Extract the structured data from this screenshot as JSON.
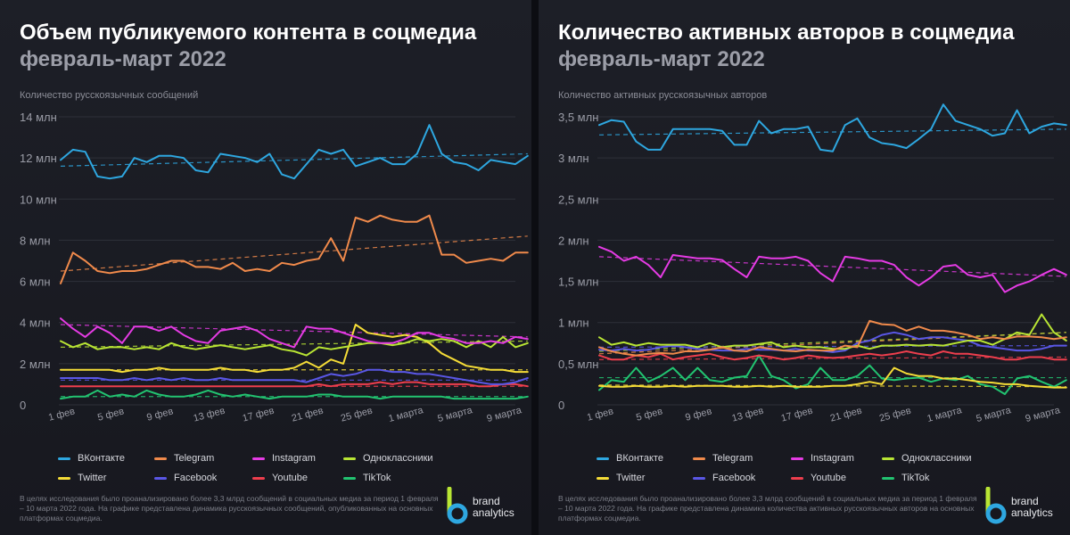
{
  "panels": [
    {
      "title": "Объем публикуемого контента в соцмедиа",
      "subtitle": "февраль-март 2022",
      "ylabel": "Количество русскоязычных сообщений",
      "footnote": "В целях исследования было проанализировано более 3,3 млрд сообщений в социальных медиа за период 1 февраля – 10 марта 2022 года. На графике представлена динамика русскоязычных сообщений, опубликованных на основных платформах соцмедиа."
    },
    {
      "title": "Количество активных авторов в соцмедиа",
      "subtitle": "февраль-март 2022",
      "ylabel": "Количество активных русскоязычных авторов",
      "footnote": "В целях исследования было проанализировано более 3,3 млрд сообщений в социальных медиа за период 1 февраля – 10 марта 2022 года. На графике представлена динамика количества активных русскоязычных авторов на основных платформах соцмедиа."
    }
  ],
  "brand": {
    "line1": "brand",
    "line2": "analytics"
  },
  "chart_data": [
    {
      "type": "line",
      "title": "Объем публикуемого контента в соцмедиа",
      "subtitle": "февраль-март 2022",
      "ylabel": "Количество русскоязычных сообщений",
      "ylim": [
        0,
        14
      ],
      "yticks": [
        0,
        2,
        4,
        6,
        8,
        10,
        12,
        14
      ],
      "yticklabels": [
        "0",
        "2 млн",
        "4 млн",
        "6 млн",
        "8 млн",
        "10 млн",
        "12 млн",
        "14 млн"
      ],
      "xlim": [
        0,
        37
      ],
      "xticks": [
        0,
        4,
        8,
        12,
        16,
        20,
        24,
        28,
        32,
        36
      ],
      "xticklabels": [
        "1 фев",
        "5 фев",
        "9 фев",
        "13 фев",
        "17 фев",
        "21 фев",
        "25 фев",
        "1 марта",
        "5 марта",
        "9 марта"
      ],
      "grid": true,
      "legend_position": "bottom",
      "series": [
        {
          "name": "ВКонтакте",
          "color": "#2ea7e0",
          "trend": [
            11.6,
            12.2
          ],
          "values": [
            11.9,
            12.4,
            12.3,
            11.1,
            11.0,
            11.1,
            12.0,
            11.8,
            12.1,
            12.1,
            12.0,
            11.4,
            11.3,
            12.2,
            12.1,
            12.0,
            11.8,
            12.2,
            11.2,
            11.0,
            11.7,
            12.4,
            12.2,
            12.4,
            11.6,
            11.8,
            12.0,
            11.7,
            11.7,
            12.2,
            13.6,
            12.2,
            11.8,
            11.7,
            11.4,
            11.9,
            11.8,
            11.7,
            12.1
          ]
        },
        {
          "name": "Telegram",
          "color": "#f08a4b",
          "trend": [
            6.5,
            8.2
          ],
          "values": [
            5.9,
            7.4,
            7.0,
            6.5,
            6.4,
            6.5,
            6.5,
            6.6,
            6.8,
            7.0,
            7.0,
            6.7,
            6.7,
            6.6,
            6.9,
            6.5,
            6.6,
            6.5,
            6.9,
            6.8,
            7.0,
            7.1,
            8.1,
            7.0,
            9.1,
            8.9,
            9.2,
            9.0,
            8.9,
            8.9,
            9.2,
            7.3,
            7.3,
            6.9,
            7.0,
            7.1,
            7.0,
            7.4,
            7.4
          ]
        },
        {
          "name": "Instagram",
          "color": "#e53be4",
          "trend": [
            3.9,
            3.3
          ],
          "values": [
            4.2,
            3.7,
            3.3,
            3.8,
            3.5,
            3.0,
            3.8,
            3.8,
            3.6,
            3.8,
            3.4,
            3.1,
            3.0,
            3.6,
            3.7,
            3.8,
            3.6,
            3.2,
            3.0,
            2.8,
            3.8,
            3.7,
            3.7,
            3.5,
            3.3,
            3.1,
            3.0,
            3.0,
            3.2,
            3.5,
            3.5,
            3.3,
            3.2,
            3.0,
            3.0,
            3.1,
            3.0,
            3.3,
            3.2
          ]
        },
        {
          "name": "Одноклассники",
          "color": "#b9e534",
          "trend": [
            2.8,
            3.1
          ],
          "values": [
            3.1,
            2.8,
            3.0,
            2.7,
            2.8,
            2.8,
            2.7,
            2.8,
            2.7,
            3.0,
            2.8,
            2.7,
            2.8,
            2.9,
            2.8,
            2.7,
            2.8,
            2.9,
            2.7,
            2.6,
            2.4,
            2.8,
            2.7,
            2.8,
            2.9,
            3.0,
            3.0,
            2.9,
            3.0,
            3.2,
            3.1,
            3.2,
            3.1,
            2.8,
            3.1,
            2.8,
            3.3,
            2.8,
            3.0
          ]
        },
        {
          "name": "Twitter",
          "color": "#f5dc37",
          "trend": [
            1.7,
            1.7
          ],
          "values": [
            1.7,
            1.7,
            1.7,
            1.7,
            1.7,
            1.6,
            1.7,
            1.7,
            1.8,
            1.7,
            1.7,
            1.7,
            1.7,
            1.8,
            1.7,
            1.7,
            1.6,
            1.7,
            1.7,
            1.8,
            2.1,
            1.8,
            2.2,
            2.0,
            3.9,
            3.5,
            3.4,
            3.3,
            3.4,
            3.3,
            3.0,
            2.5,
            2.2,
            1.9,
            1.8,
            1.7,
            1.7,
            1.6,
            1.6
          ]
        },
        {
          "name": "Facebook",
          "color": "#5a57e6",
          "trend": [
            1.2,
            1.2
          ],
          "values": [
            1.3,
            1.3,
            1.3,
            1.3,
            1.2,
            1.2,
            1.3,
            1.2,
            1.3,
            1.2,
            1.3,
            1.2,
            1.2,
            1.3,
            1.2,
            1.2,
            1.2,
            1.2,
            1.2,
            1.2,
            1.1,
            1.3,
            1.5,
            1.4,
            1.5,
            1.7,
            1.7,
            1.6,
            1.6,
            1.5,
            1.5,
            1.4,
            1.3,
            1.2,
            1.1,
            1.0,
            1.0,
            1.1,
            1.3
          ]
        },
        {
          "name": "Youtube",
          "color": "#ee3e4d",
          "trend": [
            0.9,
            0.9
          ],
          "values": [
            0.9,
            0.9,
            0.9,
            0.9,
            0.9,
            0.9,
            0.9,
            0.9,
            0.9,
            0.9,
            0.9,
            0.9,
            0.9,
            0.9,
            0.9,
            0.9,
            0.9,
            0.9,
            0.9,
            0.9,
            0.9,
            1.0,
            0.9,
            1.0,
            1.0,
            1.0,
            1.1,
            1.0,
            1.1,
            1.1,
            1.0,
            1.0,
            1.0,
            1.0,
            0.9,
            0.9,
            1.0,
            1.0,
            0.9
          ]
        },
        {
          "name": "TikTok",
          "color": "#22c471",
          "trend": [
            0.4,
            0.4
          ],
          "values": [
            0.3,
            0.4,
            0.4,
            0.7,
            0.4,
            0.5,
            0.4,
            0.7,
            0.5,
            0.4,
            0.4,
            0.5,
            0.7,
            0.5,
            0.4,
            0.5,
            0.4,
            0.3,
            0.4,
            0.4,
            0.4,
            0.5,
            0.5,
            0.4,
            0.4,
            0.4,
            0.3,
            0.4,
            0.4,
            0.4,
            0.4,
            0.4,
            0.3,
            0.3,
            0.3,
            0.3,
            0.3,
            0.3,
            0.4
          ]
        }
      ]
    },
    {
      "type": "line",
      "title": "Количество активных авторов в соцмедиа",
      "subtitle": "февраль-март 2022",
      "ylabel": "Количество активных русскоязычных авторов",
      "ylim": [
        0,
        3.5
      ],
      "yticks": [
        0,
        0.5,
        1,
        1.5,
        2,
        2.5,
        3,
        3.5
      ],
      "yticklabels": [
        "0",
        "0,5 млн",
        "1 млн",
        "1,5 млн",
        "2 млн",
        "2,5 млн",
        "3 млн",
        "3,5 млн"
      ],
      "xlim": [
        0,
        37
      ],
      "xticks": [
        0,
        4,
        8,
        12,
        16,
        20,
        24,
        28,
        32,
        36
      ],
      "xticklabels": [
        "1 фев",
        "5 фев",
        "9 фев",
        "13 фев",
        "17 фев",
        "21 фев",
        "25 фев",
        "1 марта",
        "5 марта",
        "9 марта"
      ],
      "grid": true,
      "legend_position": "bottom",
      "series": [
        {
          "name": "ВКонтакте",
          "color": "#2ea7e0",
          "trend": [
            3.28,
            3.35
          ],
          "values": [
            3.4,
            3.46,
            3.44,
            3.2,
            3.1,
            3.1,
            3.35,
            3.35,
            3.35,
            3.35,
            3.33,
            3.16,
            3.16,
            3.45,
            3.3,
            3.35,
            3.35,
            3.38,
            3.1,
            3.08,
            3.4,
            3.48,
            3.25,
            3.18,
            3.16,
            3.12,
            3.23,
            3.35,
            3.65,
            3.45,
            3.4,
            3.35,
            3.27,
            3.3,
            3.58,
            3.3,
            3.38,
            3.42,
            3.4
          ]
        },
        {
          "name": "Telegram",
          "color": "#f08a4b",
          "trend": [
            0.62,
            0.88
          ],
          "values": [
            0.7,
            0.65,
            0.62,
            0.6,
            0.62,
            0.63,
            0.62,
            0.65,
            0.65,
            0.67,
            0.7,
            0.66,
            0.65,
            0.7,
            0.68,
            0.66,
            0.65,
            0.67,
            0.66,
            0.66,
            0.72,
            0.7,
            1.02,
            0.98,
            0.97,
            0.9,
            0.95,
            0.9,
            0.9,
            0.88,
            0.85,
            0.8,
            0.82,
            0.8,
            0.83,
            0.83,
            0.82,
            0.8,
            0.82
          ]
        },
        {
          "name": "Instagram",
          "color": "#e53be4",
          "trend": [
            1.8,
            1.56
          ],
          "values": [
            1.92,
            1.86,
            1.75,
            1.8,
            1.7,
            1.55,
            1.82,
            1.8,
            1.78,
            1.78,
            1.76,
            1.65,
            1.55,
            1.8,
            1.78,
            1.78,
            1.8,
            1.75,
            1.6,
            1.5,
            1.8,
            1.78,
            1.75,
            1.75,
            1.7,
            1.55,
            1.45,
            1.55,
            1.68,
            1.7,
            1.58,
            1.55,
            1.58,
            1.37,
            1.45,
            1.5,
            1.58,
            1.65,
            1.58
          ]
        },
        {
          "name": "Одноклассники",
          "color": "#b9e534",
          "trend": [
            0.65,
            0.88
          ],
          "values": [
            0.82,
            0.73,
            0.76,
            0.72,
            0.75,
            0.73,
            0.73,
            0.73,
            0.7,
            0.75,
            0.7,
            0.72,
            0.72,
            0.74,
            0.76,
            0.7,
            0.72,
            0.7,
            0.7,
            0.68,
            0.68,
            0.72,
            0.68,
            0.72,
            0.72,
            0.73,
            0.72,
            0.73,
            0.72,
            0.75,
            0.78,
            0.78,
            0.73,
            0.8,
            0.88,
            0.85,
            1.1,
            0.88,
            0.78
          ]
        },
        {
          "name": "Twitter",
          "color": "#f5dc37",
          "trend": [
            0.24,
            0.22
          ],
          "values": [
            0.23,
            0.22,
            0.22,
            0.23,
            0.22,
            0.22,
            0.23,
            0.22,
            0.23,
            0.23,
            0.23,
            0.22,
            0.22,
            0.23,
            0.22,
            0.23,
            0.22,
            0.22,
            0.22,
            0.23,
            0.23,
            0.25,
            0.28,
            0.25,
            0.45,
            0.38,
            0.35,
            0.35,
            0.32,
            0.32,
            0.3,
            0.28,
            0.27,
            0.25,
            0.25,
            0.23,
            0.22,
            0.21,
            0.21
          ]
        },
        {
          "name": "Facebook",
          "color": "#5a57e6",
          "trend": [
            0.7,
            0.72
          ],
          "values": [
            0.67,
            0.66,
            0.68,
            0.66,
            0.67,
            0.7,
            0.72,
            0.7,
            0.68,
            0.67,
            0.66,
            0.66,
            0.68,
            0.67,
            0.67,
            0.66,
            0.68,
            0.66,
            0.66,
            0.64,
            0.66,
            0.75,
            0.78,
            0.85,
            0.88,
            0.85,
            0.8,
            0.82,
            0.82,
            0.8,
            0.78,
            0.72,
            0.7,
            0.68,
            0.66,
            0.66,
            0.68,
            0.72,
            0.72
          ]
        },
        {
          "name": "Youtube",
          "color": "#ee3e4d",
          "trend": [
            0.55,
            0.58
          ],
          "values": [
            0.6,
            0.55,
            0.55,
            0.6,
            0.58,
            0.62,
            0.55,
            0.58,
            0.6,
            0.62,
            0.58,
            0.55,
            0.57,
            0.6,
            0.58,
            0.55,
            0.57,
            0.6,
            0.58,
            0.57,
            0.58,
            0.6,
            0.62,
            0.6,
            0.62,
            0.65,
            0.62,
            0.6,
            0.65,
            0.62,
            0.62,
            0.6,
            0.58,
            0.55,
            0.55,
            0.58,
            0.58,
            0.55,
            0.55
          ]
        },
        {
          "name": "TikTok",
          "color": "#22c471",
          "trend": [
            0.33,
            0.33
          ],
          "values": [
            0.18,
            0.3,
            0.28,
            0.45,
            0.28,
            0.35,
            0.45,
            0.3,
            0.45,
            0.3,
            0.28,
            0.33,
            0.35,
            0.6,
            0.35,
            0.3,
            0.2,
            0.25,
            0.45,
            0.3,
            0.3,
            0.35,
            0.48,
            0.32,
            0.3,
            0.32,
            0.33,
            0.28,
            0.32,
            0.3,
            0.35,
            0.25,
            0.22,
            0.13,
            0.32,
            0.35,
            0.28,
            0.22,
            0.3
          ]
        }
      ]
    }
  ]
}
